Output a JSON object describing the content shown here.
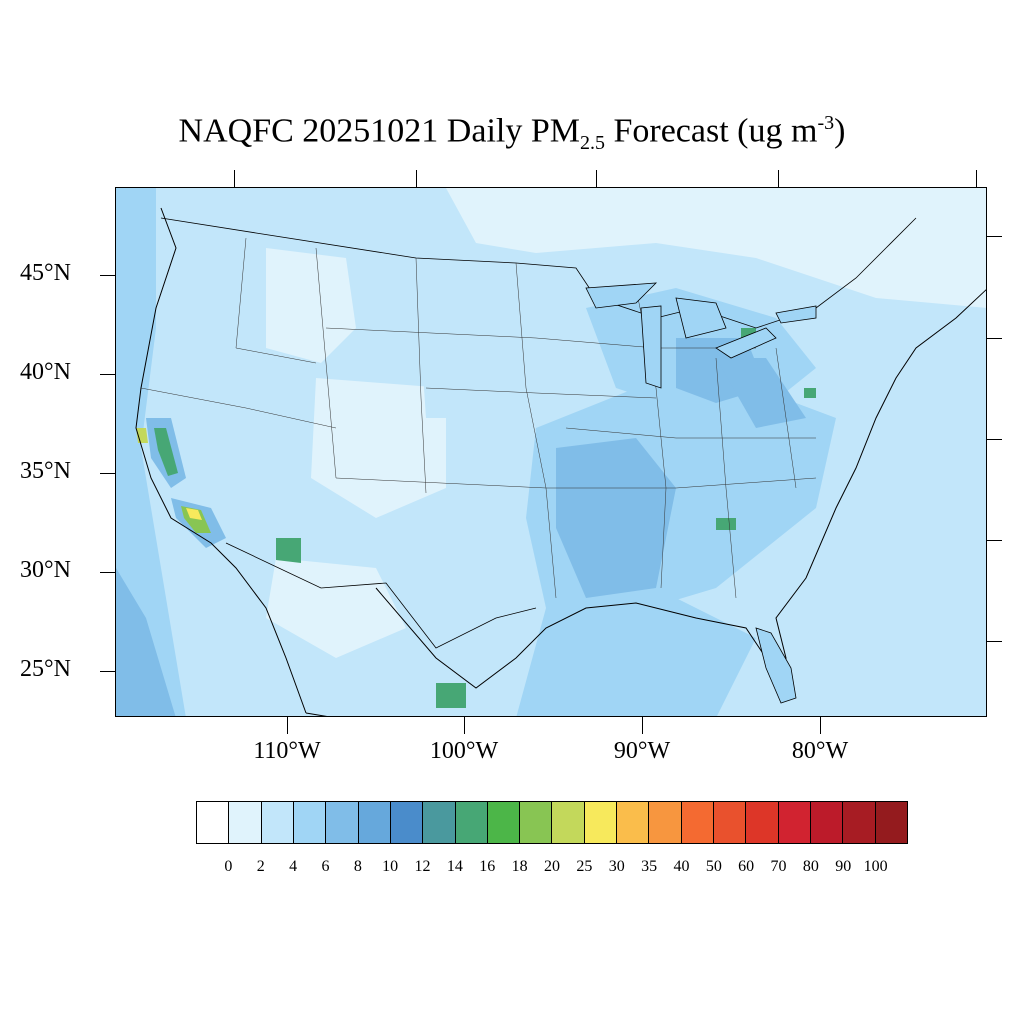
{
  "title": {
    "prefix": "NAQFC 20251021 Daily PM",
    "sub": "2.5",
    "middle": " Forecast (ug m",
    "sup": "-3",
    "suffix": ")"
  },
  "map": {
    "type": "filled-contour-map",
    "region": "CONUS",
    "lat_labels": [
      "45°N",
      "40°N",
      "35°N",
      "30°N",
      "25°N"
    ],
    "lon_labels": [
      "110°W",
      "100°W",
      "90°W",
      "80°W"
    ],
    "background_color": "#c2e6fa"
  },
  "colorbar": {
    "levels": [
      "0",
      "2",
      "4",
      "6",
      "8",
      "10",
      "12",
      "14",
      "16",
      "18",
      "20",
      "25",
      "30",
      "35",
      "40",
      "50",
      "60",
      "70",
      "80",
      "90",
      "100"
    ],
    "colors": [
      "#ffffff",
      "#e0f3fc",
      "#c2e6fa",
      "#a0d5f5",
      "#80bde8",
      "#66a8dc",
      "#4a8ccb",
      "#4a999e",
      "#47a775",
      "#4cb648",
      "#88c553",
      "#c3d85b",
      "#f7e95c",
      "#fabd4b",
      "#f7963f",
      "#f46a31",
      "#e9512d",
      "#dd3628",
      "#d12330",
      "#bc1b2a",
      "#a71c23",
      "#941b1e"
    ]
  }
}
